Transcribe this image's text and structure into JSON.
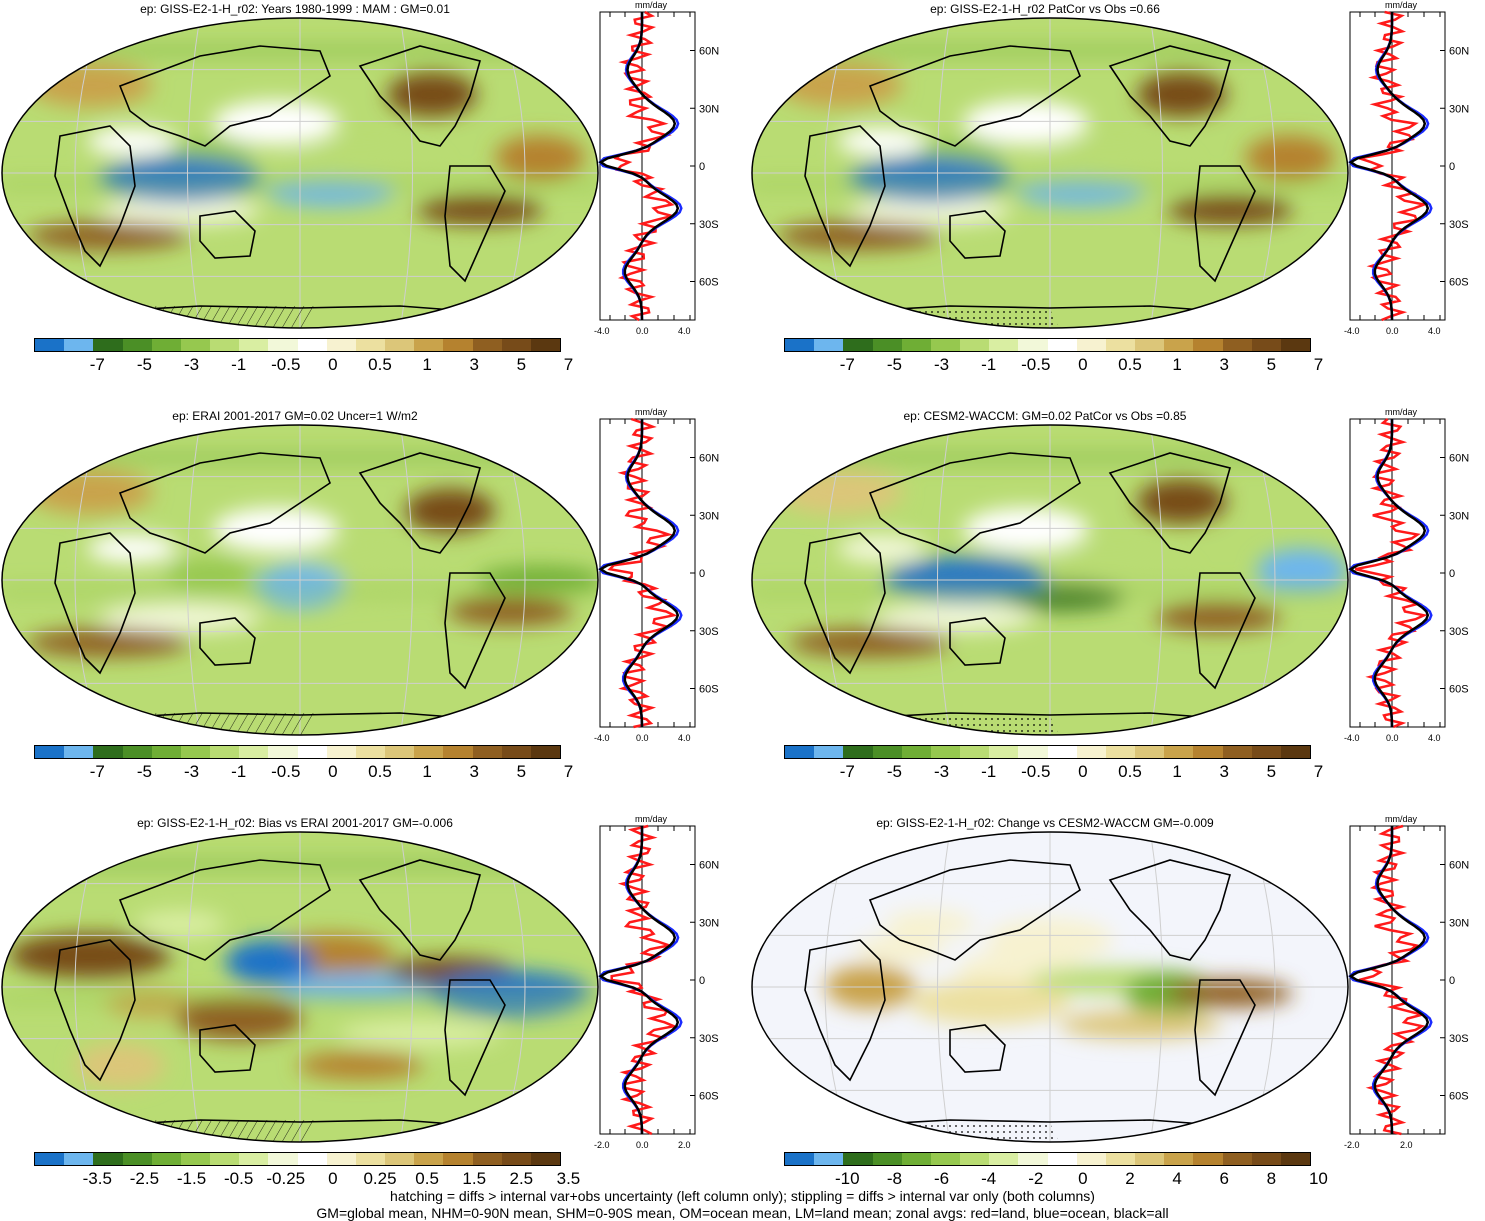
{
  "panels": [
    {
      "title": "ep: GISS-E2-1-H_r02: Years 1980-1999 : MAM : GM=0.01",
      "scale": "A",
      "xticks": [
        "-4.0",
        "0.0",
        "4.0"
      ],
      "field": "model",
      "hatch": "left"
    },
    {
      "title": "ep: GISS-E2-1-H_r02 PatCor vs Obs =0.66",
      "scale": "A",
      "xticks": [
        "-4.0",
        "0.0",
        "4.0"
      ],
      "field": "model",
      "hatch": "right"
    },
    {
      "title": "ep: ERAI 2001-2017 GM=0.02 Uncer=1 W/m2",
      "scale": "A",
      "xticks": [
        "-4.0",
        "0.0",
        "4.0"
      ],
      "field": "obs",
      "hatch": "left"
    },
    {
      "title": "ep: CESM2-WACCM: GM=0.02 PatCor vs Obs =0.85",
      "scale": "A",
      "xticks": [
        "-4.0",
        "0.0",
        "4.0"
      ],
      "field": "model2",
      "hatch": "right"
    },
    {
      "title": "ep: GISS-E2-1-H_r02: Bias vs ERAI 2001-2017 GM=-0.006",
      "scale": "B",
      "xticks": [
        "-2.0",
        "0.0",
        "2.0"
      ],
      "field": "bias",
      "hatch": "left"
    },
    {
      "title": "ep: GISS-E2-1-H_r02: Change vs CESM2-WACCM GM=-0.009",
      "scale": "C",
      "xticks": [
        "-2.0",
        "2.0"
      ],
      "field": "change",
      "hatch": "right"
    }
  ],
  "zonal": {
    "unit": "mm/day",
    "lat_labels": [
      "60N",
      "30N",
      "0",
      "30S",
      "60S"
    ]
  },
  "colorbars": {
    "A": [
      "-7",
      "-5",
      "-3",
      "-1",
      "-0.5",
      "0",
      "0.5",
      "1",
      "3",
      "5",
      "7"
    ],
    "B": [
      "-3.5",
      "-2.5",
      "-1.5",
      "-0.5",
      "-0.25",
      "0",
      "0.25",
      "0.5",
      "1.5",
      "2.5",
      "3.5"
    ],
    "C": [
      "-10",
      "-8",
      "-6",
      "-4",
      "-2",
      "0",
      "2",
      "4",
      "6",
      "8",
      "10"
    ]
  },
  "colors": {
    "swatches": [
      "#1a72c8",
      "#6db6ee",
      "#2e6d1c",
      "#4b8f26",
      "#6fae35",
      "#96c84f",
      "#b9dc73",
      "#d9eea2",
      "#f2f8d9",
      "#ffffff",
      "#f7f2d0",
      "#ece0a0",
      "#dcc679",
      "#c9a34b",
      "#b5822f",
      "#8f5f21",
      "#774b19",
      "#5b3810"
    ],
    "land_line": "#000000",
    "land": "#ff1a1a",
    "ocean": "#1a2bff",
    "all": "#000000"
  },
  "footer": {
    "line1": "hatching = diffs > internal var+obs uncertainty (left column only); stippling = diffs > internal var only (both columns)",
    "line2": "GM=global mean, NHM=0-90N mean, SHM=0-90S mean, OM=ocean mean, LM=land mean; zonal avgs: red=land, blue=ocean, black=all"
  }
}
